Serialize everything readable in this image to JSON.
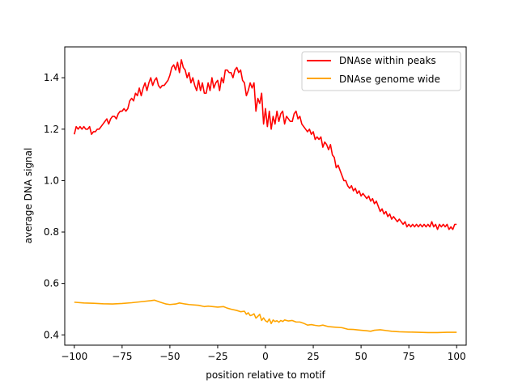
{
  "chart_data": {
    "type": "line",
    "title": "",
    "xlabel": "position relative to motif",
    "ylabel": "average DNA signal",
    "xlim": [
      -105,
      105
    ],
    "ylim": [
      0.36,
      1.52
    ],
    "x_ticks": [
      -100,
      -75,
      -50,
      -25,
      0,
      25,
      50,
      75,
      100
    ],
    "y_ticks": [
      0.4,
      0.6,
      0.8,
      1.0,
      1.2,
      1.4
    ],
    "legend_position": "upper-right",
    "grid": false,
    "series": [
      {
        "name": "DNAse within peaks",
        "color": "#ff0000",
        "points": [
          [
            -100,
            1.18
          ],
          [
            -99,
            1.21
          ],
          [
            -98,
            1.2
          ],
          [
            -97,
            1.21
          ],
          [
            -96,
            1.2
          ],
          [
            -95,
            1.21
          ],
          [
            -94,
            1.2
          ],
          [
            -93,
            1.2
          ],
          [
            -92,
            1.21
          ],
          [
            -91,
            1.18
          ],
          [
            -90,
            1.19
          ],
          [
            -89,
            1.19
          ],
          [
            -88,
            1.2
          ],
          [
            -87,
            1.2
          ],
          [
            -86,
            1.21
          ],
          [
            -85,
            1.22
          ],
          [
            -84,
            1.23
          ],
          [
            -83,
            1.24
          ],
          [
            -82,
            1.22
          ],
          [
            -81,
            1.24
          ],
          [
            -80,
            1.25
          ],
          [
            -79,
            1.25
          ],
          [
            -78,
            1.24
          ],
          [
            -77,
            1.26
          ],
          [
            -76,
            1.27
          ],
          [
            -75,
            1.27
          ],
          [
            -74,
            1.28
          ],
          [
            -73,
            1.27
          ],
          [
            -72,
            1.28
          ],
          [
            -71,
            1.31
          ],
          [
            -70,
            1.32
          ],
          [
            -69,
            1.31
          ],
          [
            -68,
            1.34
          ],
          [
            -67,
            1.33
          ],
          [
            -66,
            1.36
          ],
          [
            -65,
            1.33
          ],
          [
            -64,
            1.36
          ],
          [
            -63,
            1.38
          ],
          [
            -62,
            1.35
          ],
          [
            -61,
            1.38
          ],
          [
            -60,
            1.4
          ],
          [
            -59,
            1.37
          ],
          [
            -58,
            1.39
          ],
          [
            -57,
            1.4
          ],
          [
            -56,
            1.37
          ],
          [
            -55,
            1.36
          ],
          [
            -54,
            1.37
          ],
          [
            -53,
            1.37
          ],
          [
            -52,
            1.38
          ],
          [
            -51,
            1.39
          ],
          [
            -50,
            1.41
          ],
          [
            -49,
            1.44
          ],
          [
            -48,
            1.45
          ],
          [
            -47,
            1.43
          ],
          [
            -46,
            1.46
          ],
          [
            -45,
            1.42
          ],
          [
            -44,
            1.47
          ],
          [
            -43,
            1.44
          ],
          [
            -42,
            1.43
          ],
          [
            -41,
            1.4
          ],
          [
            -40,
            1.42
          ],
          [
            -39,
            1.38
          ],
          [
            -38,
            1.4
          ],
          [
            -37,
            1.37
          ],
          [
            -36,
            1.35
          ],
          [
            -35,
            1.39
          ],
          [
            -34,
            1.35
          ],
          [
            -33,
            1.38
          ],
          [
            -32,
            1.34
          ],
          [
            -31,
            1.34
          ],
          [
            -30,
            1.38
          ],
          [
            -29,
            1.35
          ],
          [
            -28,
            1.4
          ],
          [
            -27,
            1.36
          ],
          [
            -26,
            1.38
          ],
          [
            -25,
            1.39
          ],
          [
            -24,
            1.35
          ],
          [
            -23,
            1.4
          ],
          [
            -22,
            1.38
          ],
          [
            -21,
            1.43
          ],
          [
            -20,
            1.43
          ],
          [
            -19,
            1.42
          ],
          [
            -18,
            1.42
          ],
          [
            -17,
            1.4
          ],
          [
            -16,
            1.43
          ],
          [
            -15,
            1.44
          ],
          [
            -14,
            1.42
          ],
          [
            -13,
            1.43
          ],
          [
            -12,
            1.39
          ],
          [
            -11,
            1.38
          ],
          [
            -10,
            1.33
          ],
          [
            -9,
            1.35
          ],
          [
            -8,
            1.38
          ],
          [
            -7,
            1.36
          ],
          [
            -6,
            1.38
          ],
          [
            -5,
            1.27
          ],
          [
            -4,
            1.32
          ],
          [
            -3,
            1.3
          ],
          [
            -2,
            1.34
          ],
          [
            -1,
            1.22
          ],
          [
            0,
            1.28
          ],
          [
            1,
            1.21
          ],
          [
            2,
            1.27
          ],
          [
            3,
            1.2
          ],
          [
            4,
            1.25
          ],
          [
            5,
            1.22
          ],
          [
            6,
            1.27
          ],
          [
            7,
            1.23
          ],
          [
            8,
            1.26
          ],
          [
            9,
            1.27
          ],
          [
            10,
            1.22
          ],
          [
            11,
            1.25
          ],
          [
            12,
            1.24
          ],
          [
            13,
            1.23
          ],
          [
            14,
            1.23
          ],
          [
            15,
            1.26
          ],
          [
            16,
            1.27
          ],
          [
            17,
            1.24
          ],
          [
            18,
            1.25
          ],
          [
            19,
            1.22
          ],
          [
            20,
            1.21
          ],
          [
            21,
            1.2
          ],
          [
            22,
            1.19
          ],
          [
            23,
            1.2
          ],
          [
            24,
            1.18
          ],
          [
            25,
            1.19
          ],
          [
            26,
            1.16
          ],
          [
            27,
            1.17
          ],
          [
            28,
            1.16
          ],
          [
            29,
            1.17
          ],
          [
            30,
            1.13
          ],
          [
            31,
            1.15
          ],
          [
            32,
            1.14
          ],
          [
            33,
            1.12
          ],
          [
            34,
            1.14
          ],
          [
            35,
            1.1
          ],
          [
            36,
            1.09
          ],
          [
            37,
            1.05
          ],
          [
            38,
            1.06
          ],
          [
            39,
            1.04
          ],
          [
            40,
            1.02
          ],
          [
            41,
            1.0
          ],
          [
            42,
            1.0
          ],
          [
            43,
            0.98
          ],
          [
            44,
            0.97
          ],
          [
            45,
            0.98
          ],
          [
            46,
            0.96
          ],
          [
            47,
            0.97
          ],
          [
            48,
            0.95
          ],
          [
            49,
            0.96
          ],
          [
            50,
            0.94
          ],
          [
            51,
            0.95
          ],
          [
            52,
            0.94
          ],
          [
            53,
            0.93
          ],
          [
            54,
            0.94
          ],
          [
            55,
            0.92
          ],
          [
            56,
            0.93
          ],
          [
            57,
            0.91
          ],
          [
            58,
            0.92
          ],
          [
            59,
            0.9
          ],
          [
            60,
            0.88
          ],
          [
            61,
            0.89
          ],
          [
            62,
            0.87
          ],
          [
            63,
            0.88
          ],
          [
            64,
            0.86
          ],
          [
            65,
            0.87
          ],
          [
            66,
            0.85
          ],
          [
            67,
            0.86
          ],
          [
            68,
            0.85
          ],
          [
            69,
            0.84
          ],
          [
            70,
            0.85
          ],
          [
            71,
            0.84
          ],
          [
            72,
            0.83
          ],
          [
            73,
            0.84
          ],
          [
            74,
            0.82
          ],
          [
            75,
            0.83
          ],
          [
            76,
            0.82
          ],
          [
            77,
            0.83
          ],
          [
            78,
            0.82
          ],
          [
            79,
            0.83
          ],
          [
            80,
            0.82
          ],
          [
            81,
            0.83
          ],
          [
            82,
            0.82
          ],
          [
            83,
            0.83
          ],
          [
            84,
            0.82
          ],
          [
            85,
            0.83
          ],
          [
            86,
            0.82
          ],
          [
            87,
            0.84
          ],
          [
            88,
            0.82
          ],
          [
            89,
            0.83
          ],
          [
            90,
            0.81
          ],
          [
            91,
            0.83
          ],
          [
            92,
            0.82
          ],
          [
            93,
            0.83
          ],
          [
            94,
            0.82
          ],
          [
            95,
            0.83
          ],
          [
            96,
            0.81
          ],
          [
            97,
            0.82
          ],
          [
            98,
            0.81
          ],
          [
            99,
            0.83
          ],
          [
            100,
            0.83
          ]
        ]
      },
      {
        "name": "DNAse genome wide",
        "color": "#ffa500",
        "points": [
          [
            -100,
            0.527
          ],
          [
            -95,
            0.524
          ],
          [
            -90,
            0.523
          ],
          [
            -85,
            0.521
          ],
          [
            -80,
            0.52
          ],
          [
            -75,
            0.522
          ],
          [
            -70,
            0.525
          ],
          [
            -65,
            0.529
          ],
          [
            -60,
            0.533
          ],
          [
            -58,
            0.535
          ],
          [
            -55,
            0.527
          ],
          [
            -52,
            0.52
          ],
          [
            -50,
            0.518
          ],
          [
            -47,
            0.52
          ],
          [
            -45,
            0.524
          ],
          [
            -42,
            0.52
          ],
          [
            -40,
            0.518
          ],
          [
            -35,
            0.515
          ],
          [
            -32,
            0.51
          ],
          [
            -30,
            0.512
          ],
          [
            -25,
            0.508
          ],
          [
            -22,
            0.51
          ],
          [
            -20,
            0.504
          ],
          [
            -18,
            0.5
          ],
          [
            -15,
            0.495
          ],
          [
            -13,
            0.49
          ],
          [
            -11,
            0.492
          ],
          [
            -10,
            0.48
          ],
          [
            -9,
            0.486
          ],
          [
            -8,
            0.475
          ],
          [
            -7,
            0.477
          ],
          [
            -6,
            0.482
          ],
          [
            -5,
            0.465
          ],
          [
            -4,
            0.472
          ],
          [
            -3,
            0.48
          ],
          [
            -2,
            0.456
          ],
          [
            -1,
            0.466
          ],
          [
            0,
            0.455
          ],
          [
            1,
            0.45
          ],
          [
            2,
            0.462
          ],
          [
            3,
            0.444
          ],
          [
            4,
            0.458
          ],
          [
            5,
            0.452
          ],
          [
            6,
            0.455
          ],
          [
            7,
            0.449
          ],
          [
            8,
            0.456
          ],
          [
            9,
            0.452
          ],
          [
            10,
            0.458
          ],
          [
            12,
            0.454
          ],
          [
            14,
            0.456
          ],
          [
            16,
            0.45
          ],
          [
            18,
            0.45
          ],
          [
            20,
            0.445
          ],
          [
            22,
            0.438
          ],
          [
            24,
            0.44
          ],
          [
            26,
            0.437
          ],
          [
            28,
            0.435
          ],
          [
            30,
            0.438
          ],
          [
            33,
            0.432
          ],
          [
            36,
            0.43
          ],
          [
            40,
            0.428
          ],
          [
            43,
            0.422
          ],
          [
            46,
            0.421
          ],
          [
            50,
            0.418
          ],
          [
            53,
            0.416
          ],
          [
            55,
            0.414
          ],
          [
            57,
            0.418
          ],
          [
            60,
            0.42
          ],
          [
            63,
            0.417
          ],
          [
            66,
            0.414
          ],
          [
            70,
            0.412
          ],
          [
            75,
            0.411
          ],
          [
            80,
            0.41
          ],
          [
            85,
            0.409
          ],
          [
            90,
            0.409
          ],
          [
            95,
            0.41
          ],
          [
            100,
            0.41
          ]
        ]
      }
    ]
  }
}
